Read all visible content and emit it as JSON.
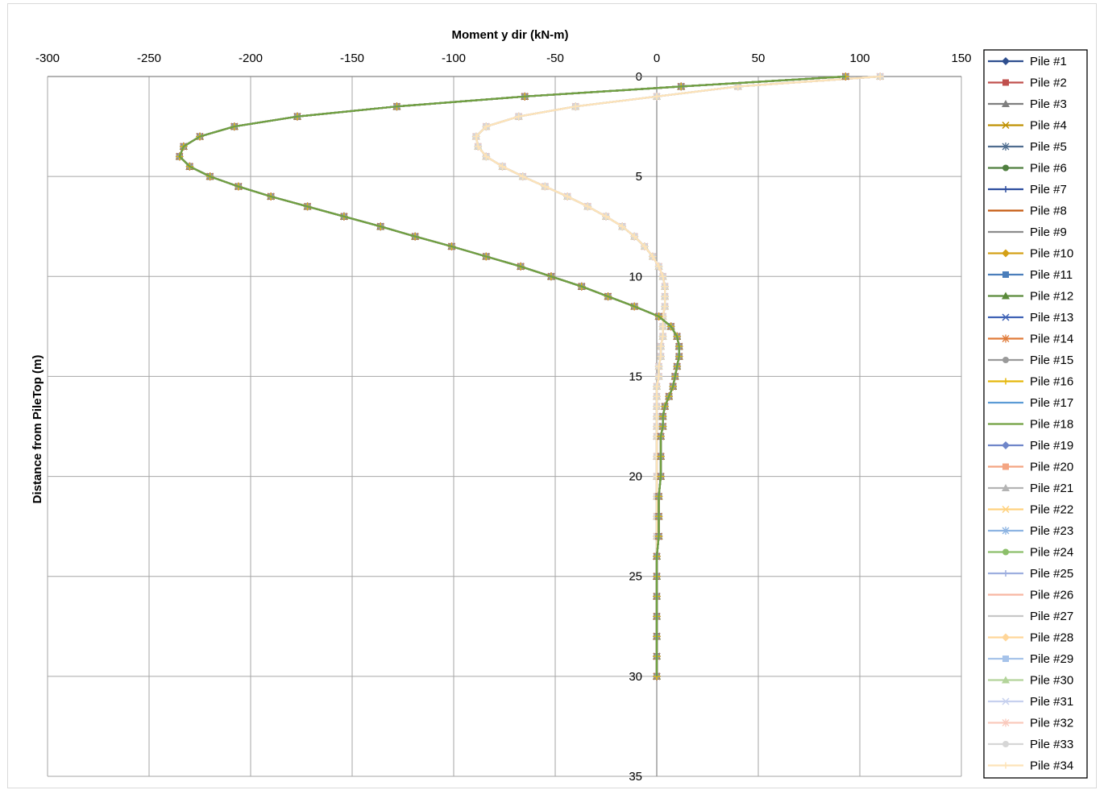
{
  "chart_data": {
    "type": "line",
    "title": "",
    "xlabel": "Moment y dir (kN-m)",
    "ylabel": "Distance from PileTop (m)",
    "xlim": [
      -300,
      150
    ],
    "ylim": [
      35,
      0
    ],
    "x_ticks": [
      -300,
      -250,
      -200,
      -150,
      -100,
      -50,
      0,
      50,
      100,
      150
    ],
    "y_ticks": [
      0,
      5,
      10,
      15,
      20,
      25,
      30,
      35
    ],
    "x_axis_position": "top",
    "y_axis_position": "at x = 0",
    "y_axis_inverted": true,
    "grid": true,
    "legend_position": "right",
    "profiles": {
      "A": {
        "depth": [
          0,
          0.5,
          1,
          1.5,
          2,
          2.5,
          3,
          3.5,
          4,
          4.5,
          5,
          5.5,
          6,
          6.5,
          7,
          7.5,
          8,
          8.5,
          9,
          9.5,
          10,
          10.5,
          11,
          11.5,
          12,
          12.5,
          13,
          13.5,
          14,
          14.5,
          15,
          15.5,
          16,
          16.5,
          17,
          17.5,
          18,
          19,
          20,
          21,
          22,
          23,
          24,
          25,
          26,
          27,
          28,
          29,
          30
        ],
        "moment": [
          93,
          12,
          -65,
          -128,
          -177,
          -208,
          -225,
          -233,
          -235,
          -230,
          -220,
          -206,
          -190,
          -172,
          -154,
          -136,
          -119,
          -101,
          -84,
          -67,
          -52,
          -37,
          -24,
          -11,
          1,
          7,
          10,
          11,
          11,
          10,
          9,
          8,
          6,
          4,
          3,
          3,
          2,
          2,
          2,
          1,
          1,
          1,
          0,
          0,
          0,
          0,
          0,
          0,
          0
        ]
      },
      "B": {
        "depth": [
          0,
          0.5,
          1,
          1.5,
          2,
          2.5,
          3,
          3.5,
          4,
          4.5,
          5,
          5.5,
          6,
          6.5,
          7,
          7.5,
          8,
          8.5,
          9,
          9.5,
          10,
          10.5,
          11,
          11.5,
          12,
          12.5,
          13,
          13.5,
          14,
          14.5,
          15,
          15.5,
          16,
          16.5,
          17,
          17.5,
          18,
          19,
          20,
          21,
          22,
          23,
          24,
          25,
          26,
          27,
          28,
          29,
          30
        ],
        "moment": [
          110,
          40,
          0,
          -40,
          -68,
          -84,
          -89,
          -88,
          -84,
          -76,
          -66,
          -55,
          -44,
          -34,
          -25,
          -17,
          -11,
          -6,
          -2,
          1,
          3,
          4,
          4,
          4,
          3,
          3,
          3,
          2,
          2,
          1,
          1,
          0,
          0,
          0,
          0,
          0,
          0,
          0,
          0,
          0,
          0,
          0,
          0,
          0,
          0,
          0,
          0,
          0,
          0
        ]
      }
    },
    "series": [
      {
        "name": "Pile #1",
        "color": "#2F4F8F",
        "marker": "diamond",
        "profile": "A"
      },
      {
        "name": "Pile #2",
        "color": "#C0504D",
        "marker": "square",
        "profile": "A"
      },
      {
        "name": "Pile #3",
        "color": "#7F7F7F",
        "marker": "triangle",
        "profile": "A"
      },
      {
        "name": "Pile #4",
        "color": "#BF9000",
        "marker": "x",
        "profile": "A"
      },
      {
        "name": "Pile #5",
        "color": "#4F6D8F",
        "marker": "star",
        "profile": "A"
      },
      {
        "name": "Pile #6",
        "color": "#4F7F3F",
        "marker": "circle",
        "profile": "A"
      },
      {
        "name": "Pile #7",
        "color": "#2F4F9F",
        "marker": "plus",
        "profile": "A"
      },
      {
        "name": "Pile #8",
        "color": "#C55A11",
        "marker": "none",
        "profile": "A"
      },
      {
        "name": "Pile #9",
        "color": "#8C8C8C",
        "marker": "none",
        "profile": "A"
      },
      {
        "name": "Pile #10",
        "color": "#D4A017",
        "marker": "diamond",
        "profile": "A"
      },
      {
        "name": "Pile #11",
        "color": "#4A7EBB",
        "marker": "square",
        "profile": "A"
      },
      {
        "name": "Pile #12",
        "color": "#5A8A3A",
        "marker": "triangle",
        "profile": "A"
      },
      {
        "name": "Pile #13",
        "color": "#3F62B5",
        "marker": "x",
        "profile": "A"
      },
      {
        "name": "Pile #14",
        "color": "#E07B39",
        "marker": "star",
        "profile": "A"
      },
      {
        "name": "Pile #15",
        "color": "#9A9A9A",
        "marker": "circle",
        "profile": "A"
      },
      {
        "name": "Pile #16",
        "color": "#E5B80B",
        "marker": "plus",
        "profile": "A"
      },
      {
        "name": "Pile #17",
        "color": "#5B9BD5",
        "marker": "none",
        "profile": "A"
      },
      {
        "name": "Pile #18",
        "color": "#70A040",
        "marker": "none",
        "profile": "A"
      },
      {
        "name": "Pile #19",
        "color": "#6F86C9",
        "marker": "diamond",
        "profile": "B"
      },
      {
        "name": "Pile #20",
        "color": "#F4A582",
        "marker": "square",
        "profile": "B"
      },
      {
        "name": "Pile #21",
        "color": "#B4B4B4",
        "marker": "triangle",
        "profile": "B"
      },
      {
        "name": "Pile #22",
        "color": "#FFD27F",
        "marker": "x",
        "profile": "B"
      },
      {
        "name": "Pile #23",
        "color": "#8DB4E2",
        "marker": "star",
        "profile": "B"
      },
      {
        "name": "Pile #24",
        "color": "#8CBF6A",
        "marker": "circle",
        "profile": "B"
      },
      {
        "name": "Pile #25",
        "color": "#9DAEDF",
        "marker": "plus",
        "profile": "B"
      },
      {
        "name": "Pile #26",
        "color": "#F8B6A2",
        "marker": "none",
        "profile": "B"
      },
      {
        "name": "Pile #27",
        "color": "#C8C8C8",
        "marker": "none",
        "profile": "B"
      },
      {
        "name": "Pile #28",
        "color": "#FFD699",
        "marker": "diamond",
        "profile": "B"
      },
      {
        "name": "Pile #29",
        "color": "#A6C3EA",
        "marker": "square",
        "profile": "B"
      },
      {
        "name": "Pile #30",
        "color": "#B3D49A",
        "marker": "triangle",
        "profile": "B"
      },
      {
        "name": "Pile #31",
        "color": "#C6D0EE",
        "marker": "x",
        "profile": "B"
      },
      {
        "name": "Pile #32",
        "color": "#F9C9BC",
        "marker": "star",
        "profile": "B"
      },
      {
        "name": "Pile #33",
        "color": "#D6D6D6",
        "marker": "circle",
        "profile": "B"
      },
      {
        "name": "Pile #34",
        "color": "#FDE3B8",
        "marker": "plus",
        "profile": "B"
      }
    ]
  }
}
